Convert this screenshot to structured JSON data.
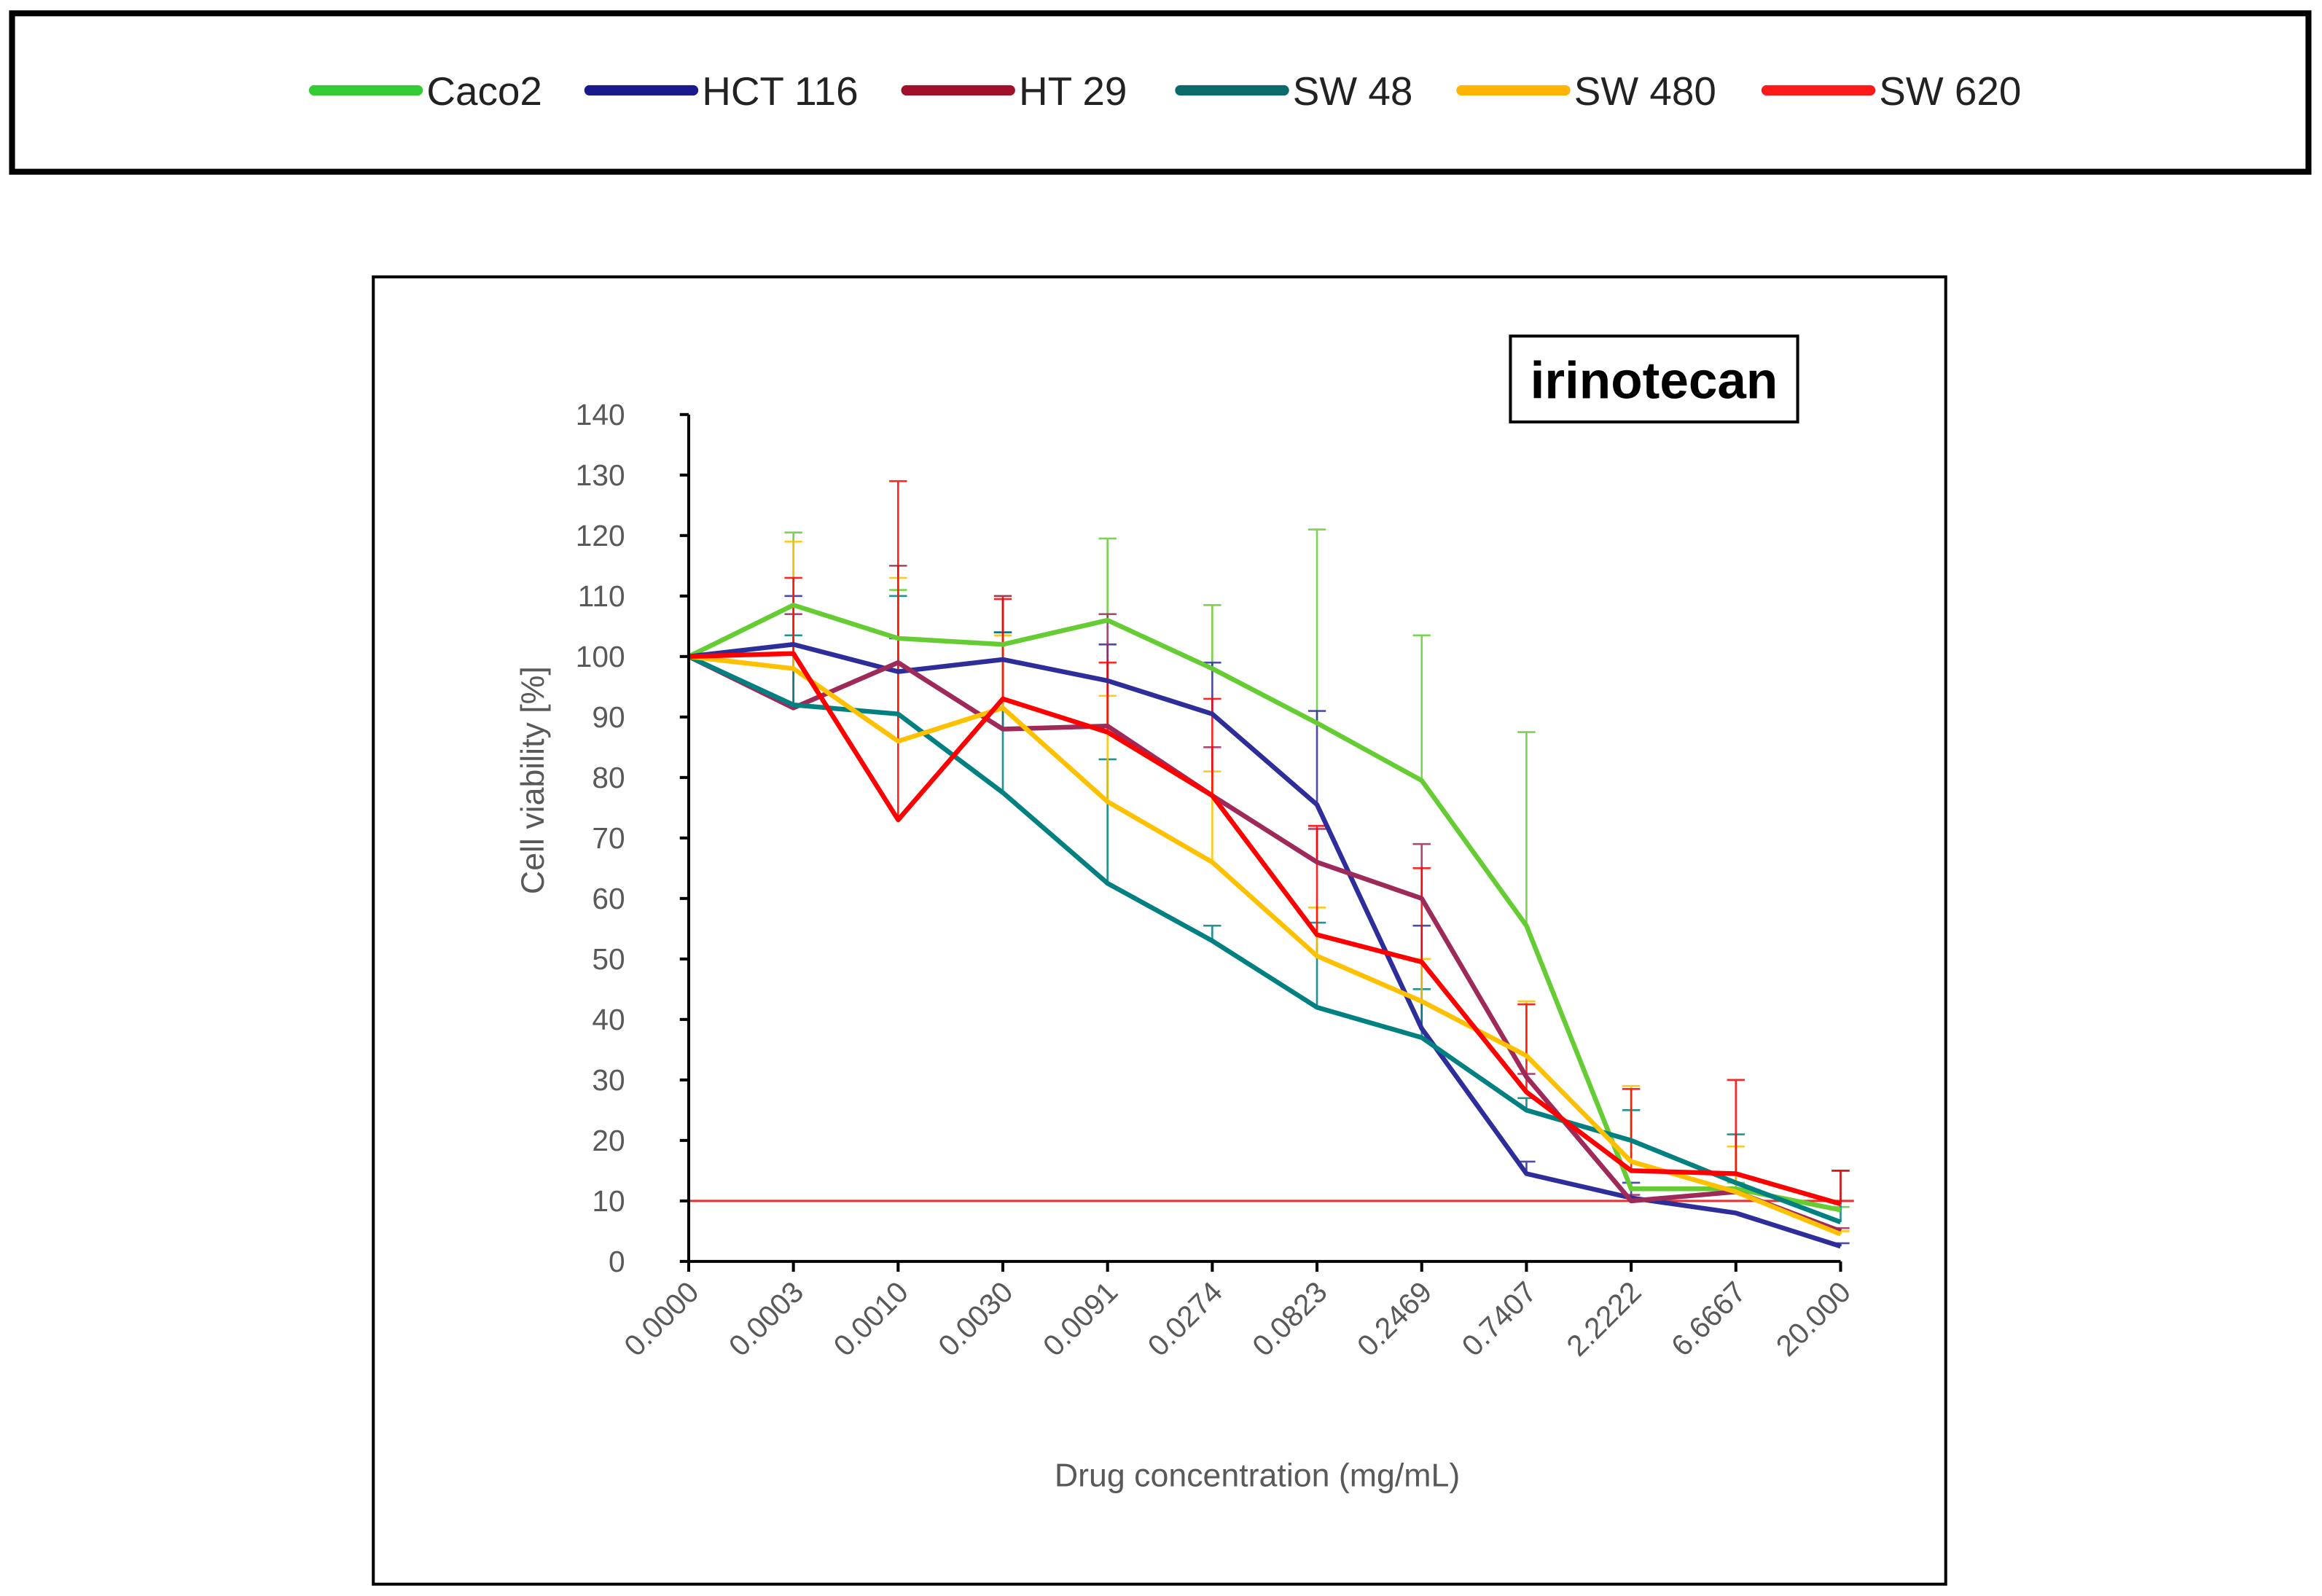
{
  "chart_data": {
    "type": "line",
    "title": "irinotecan",
    "xlabel": "Drug concentration (mg/mL)",
    "ylabel": "Cell viability [%]",
    "ylim": [
      0,
      140
    ],
    "yticks": [
      0,
      10,
      20,
      30,
      40,
      50,
      60,
      70,
      80,
      90,
      100,
      110,
      120,
      130,
      140
    ],
    "categories": [
      "0.0000",
      "0.0003",
      "0.0010",
      "0.0030",
      "0.0091",
      "0.0274",
      "0.0823",
      "0.2469",
      "0.7407",
      "2.2222",
      "6.6667",
      "20.000"
    ],
    "reference_line": {
      "y": 10,
      "color": "#e83030"
    },
    "legend_position": "top (separate box)",
    "series": [
      {
        "name": "Caco2",
        "color": "#66cc33",
        "legend_color": "#33cc33",
        "values": [
          100,
          108.5,
          103,
          102,
          106,
          98,
          89,
          79.5,
          55.5,
          12,
          12,
          8.5
        ],
        "error_upper": [
          100,
          120.5,
          111,
          110,
          119.5,
          108.5,
          121,
          103.5,
          87.5,
          12,
          13,
          9
        ]
      },
      {
        "name": "HCT 116",
        "color": "#2e2e9a",
        "legend_color": "#1a1a8c",
        "values": [
          100,
          102,
          97.5,
          99.5,
          96,
          90.5,
          75.5,
          38.5,
          14.5,
          10.5,
          8,
          2.5
        ],
        "error_upper": [
          100,
          110,
          103,
          104,
          102,
          99,
          91,
          55.5,
          16.5,
          13,
          8,
          3
        ]
      },
      {
        "name": "HT 29",
        "color": "#9e2a5a",
        "legend_color": "#a0102a",
        "values": [
          100,
          91.5,
          99,
          88,
          88.5,
          77,
          66,
          60,
          30.5,
          10,
          11.5,
          5
        ],
        "error_upper": [
          100,
          107,
          115,
          110,
          107,
          85,
          71.5,
          69,
          31,
          11,
          12,
          5.5
        ]
      },
      {
        "name": "SW 48",
        "color": "#008080",
        "legend_color": "#0b6b6b",
        "values": [
          100,
          92,
          90.5,
          77.5,
          62.5,
          53,
          42,
          37,
          25,
          20,
          13,
          6.5
        ],
        "error_upper": [
          100,
          103.5,
          110,
          104,
          83,
          55.5,
          56,
          45,
          27,
          25,
          21,
          15
        ]
      },
      {
        "name": "SW 480",
        "color": "#ffc000",
        "legend_color": "#ffb400",
        "values": [
          100,
          98,
          86,
          91.5,
          76,
          66,
          50.5,
          43,
          34,
          16.5,
          11.5,
          4.5
        ],
        "error_upper": [
          100,
          119,
          113,
          103.5,
          93.5,
          81,
          58.5,
          50,
          43,
          29,
          19,
          5
        ]
      },
      {
        "name": "SW 620",
        "color": "#ff0000",
        "legend_color": "#ff1a1a",
        "values": [
          100,
          100.5,
          73,
          93,
          87.5,
          77,
          54,
          49.5,
          28,
          15,
          14.5,
          9.5
        ],
        "error_upper": [
          100,
          113,
          129,
          109.5,
          99,
          93,
          72,
          65,
          42.5,
          28.5,
          30,
          15
        ]
      }
    ]
  }
}
